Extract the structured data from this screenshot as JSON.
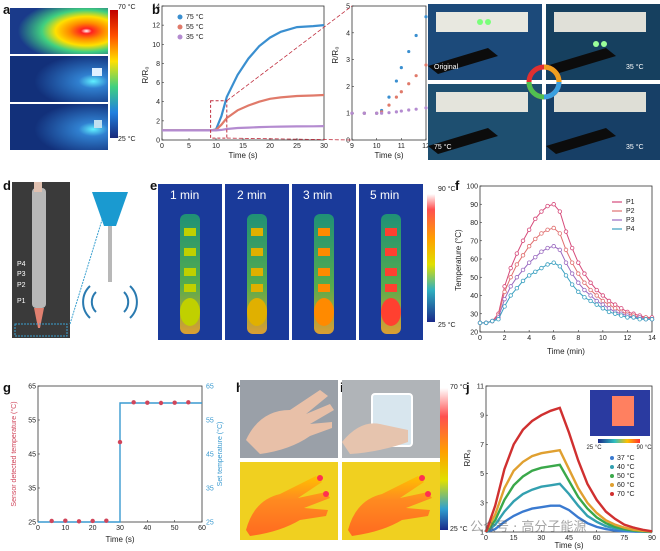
{
  "panels": {
    "a": {
      "letter": "a",
      "scale_max": "70 °C",
      "scale_min": "25 °C"
    },
    "b": {
      "letter": "b",
      "xlabel": "Time (s)",
      "ylabel": "R/R₀",
      "legend": [
        "75 °C",
        "55 °C",
        "35 °C"
      ],
      "ticks_y": [
        "0",
        "2",
        "4",
        "6",
        "8",
        "10",
        "12",
        "14"
      ],
      "ticks_x": [
        "0",
        "5",
        "10",
        "15",
        "20",
        "25",
        "30"
      ],
      "inset_ticks_y": [
        "0",
        "1",
        "2",
        "3",
        "4",
        "5"
      ],
      "inset_ticks_x": [
        "9",
        "10",
        "11",
        "12"
      ]
    },
    "c": {
      "letter": "c",
      "labels": [
        "Original",
        "35 °C",
        "75 °C",
        "35 °C"
      ]
    },
    "d": {
      "letter": "d",
      "probes": [
        "P4",
        "P3",
        "P2",
        "P1"
      ]
    },
    "e": {
      "letter": "e",
      "times": [
        "1 min",
        "2 min",
        "3 min",
        "5 min"
      ],
      "scale_max": "90 °C",
      "scale_min": "25 °C"
    },
    "f": {
      "letter": "f",
      "xlabel": "Time (min)",
      "ylabel": "Temperature (°C)",
      "legend": [
        "P1",
        "P2",
        "P3",
        "P4"
      ],
      "ticks_y": [
        "20",
        "30",
        "40",
        "50",
        "60",
        "70",
        "80",
        "90",
        "100"
      ],
      "ticks_x": [
        "0",
        "2",
        "4",
        "6",
        "8",
        "10",
        "12",
        "14"
      ]
    },
    "g": {
      "letter": "g",
      "xlabel": "Time (s)",
      "ylabel_left": "Sensor detected temperature (°C)",
      "ylabel_right": "Set temperature (°C)",
      "ticks_y": [
        "25",
        "35",
        "45",
        "55",
        "65"
      ],
      "ticks_x": [
        "0",
        "10",
        "20",
        "30",
        "40",
        "50",
        "60"
      ]
    },
    "h": {
      "letter": "h"
    },
    "i": {
      "letter": "i",
      "scale_max": "70 °C",
      "scale_min": "25 °C"
    },
    "j": {
      "letter": "j",
      "xlabel": "Time (s)",
      "ylabel": "R/R₀",
      "legend": [
        "37 °C",
        "40 °C",
        "50 °C",
        "60 °C",
        "70 °C"
      ],
      "ticks_y": [
        "1",
        "3",
        "5",
        "7",
        "9",
        "11"
      ],
      "ticks_x": [
        "0",
        "15",
        "30",
        "45",
        "60",
        "75",
        "90"
      ],
      "inset_min": "25 °C",
      "inset_max": "90 °C"
    }
  },
  "watermark": "公众号 · 高分子能源",
  "chart_data": [
    {
      "type": "line",
      "panel": "b",
      "xlabel": "Time (s)",
      "ylabel": "R/R₀",
      "xlim": [
        0,
        30
      ],
      "ylim": [
        0,
        14
      ],
      "series": [
        {
          "name": "75 °C",
          "color": "#3a8fd0",
          "x": [
            0,
            5,
            9,
            10,
            11,
            12,
            14,
            16,
            18,
            20,
            22,
            25,
            28,
            30
          ],
          "y": [
            1,
            1,
            1,
            1.1,
            2.5,
            4.5,
            6.8,
            8.5,
            9.8,
            10.7,
            11.3,
            11.8,
            11.9,
            12
          ]
        },
        {
          "name": "55 °C",
          "color": "#e07a6a",
          "x": [
            0,
            5,
            9,
            10,
            11,
            12,
            14,
            16,
            18,
            20,
            22,
            25,
            28,
            30
          ],
          "y": [
            1,
            1,
            1,
            1.05,
            1.6,
            2.3,
            3.1,
            3.6,
            4.0,
            4.3,
            4.45,
            4.6,
            4.65,
            4.7
          ]
        },
        {
          "name": "35 °C",
          "color": "#b48bd0",
          "x": [
            0,
            5,
            9,
            10,
            11,
            12,
            14,
            16,
            18,
            20,
            22,
            25,
            28,
            30
          ],
          "y": [
            1,
            1,
            1,
            1,
            1.05,
            1.15,
            1.25,
            1.3,
            1.35,
            1.38,
            1.4,
            1.42,
            1.43,
            1.45
          ]
        }
      ]
    },
    {
      "type": "scatter",
      "panel": "b-inset",
      "xlabel": "Time (s)",
      "ylabel": "R/R₀",
      "xlim": [
        9,
        12
      ],
      "ylim": [
        0,
        5
      ],
      "series": [
        {
          "name": "75 °C",
          "color": "#3a8fd0",
          "x": [
            9,
            9.5,
            10,
            10.2,
            10.5,
            10.8,
            11,
            11.3,
            11.6,
            12
          ],
          "y": [
            1,
            1,
            1,
            1.1,
            1.6,
            2.2,
            2.7,
            3.3,
            3.9,
            4.6
          ]
        },
        {
          "name": "55 °C",
          "color": "#e07a6a",
          "x": [
            9,
            9.5,
            10,
            10.2,
            10.5,
            10.8,
            11,
            11.3,
            11.6,
            12
          ],
          "y": [
            1,
            1,
            1,
            1.05,
            1.3,
            1.6,
            1.8,
            2.1,
            2.4,
            2.8
          ]
        },
        {
          "name": "35 °C",
          "color": "#b48bd0",
          "x": [
            9,
            9.5,
            10,
            10.2,
            10.5,
            10.8,
            11,
            11.3,
            11.6,
            12
          ],
          "y": [
            1,
            1,
            1,
            1,
            1.02,
            1.05,
            1.08,
            1.12,
            1.15,
            1.2
          ]
        }
      ]
    },
    {
      "type": "line",
      "panel": "f",
      "xlabel": "Time (min)",
      "ylabel": "Temperature (°C)",
      "xlim": [
        0,
        14
      ],
      "ylim": [
        20,
        100
      ],
      "series": [
        {
          "name": "P1",
          "color": "#d64a7a",
          "x": [
            0,
            0.5,
            1,
            1.5,
            2,
            2.5,
            3,
            3.5,
            4,
            4.5,
            5,
            5.5,
            6,
            6.5,
            7,
            7.5,
            8,
            8.5,
            9,
            9.5,
            10,
            10.5,
            11,
            11.5,
            12,
            12.5,
            13,
            13.5,
            14
          ],
          "y": [
            25,
            25,
            26,
            30,
            45,
            55,
            63,
            70,
            76,
            82,
            86,
            89,
            90,
            86,
            75,
            66,
            58,
            52,
            47,
            43,
            40,
            37,
            35,
            33,
            31,
            30,
            29,
            28,
            28
          ]
        },
        {
          "name": "P2",
          "color": "#e07070",
          "x": [
            0,
            0.5,
            1,
            1.5,
            2,
            2.5,
            3,
            3.5,
            4,
            4.5,
            5,
            5.5,
            6,
            6.5,
            7,
            7.5,
            8,
            8.5,
            9,
            9.5,
            10,
            10.5,
            11,
            11.5,
            12,
            12.5,
            13,
            13.5,
            14
          ],
          "y": [
            25,
            25,
            26,
            29,
            42,
            50,
            57,
            62,
            67,
            71,
            74,
            76,
            77,
            74,
            65,
            58,
            52,
            47,
            43,
            40,
            37,
            35,
            33,
            31,
            30,
            29,
            28,
            28,
            27
          ]
        },
        {
          "name": "P3",
          "color": "#9a6ac0",
          "x": [
            0,
            0.5,
            1,
            1.5,
            2,
            2.5,
            3,
            3.5,
            4,
            4.5,
            5,
            5.5,
            6,
            6.5,
            7,
            7.5,
            8,
            8.5,
            9,
            9.5,
            10,
            10.5,
            11,
            11.5,
            12,
            12.5,
            13,
            13.5,
            14
          ],
          "y": [
            25,
            25,
            26,
            28,
            38,
            45,
            50,
            54,
            58,
            61,
            64,
            66,
            67,
            65,
            58,
            52,
            47,
            43,
            40,
            37,
            35,
            33,
            31,
            30,
            29,
            28,
            28,
            27,
            27
          ]
        },
        {
          "name": "P4",
          "color": "#3aa0c0",
          "x": [
            0,
            0.5,
            1,
            1.5,
            2,
            2.5,
            3,
            3.5,
            4,
            4.5,
            5,
            5.5,
            6,
            6.5,
            7,
            7.5,
            8,
            8.5,
            9,
            9.5,
            10,
            10.5,
            11,
            11.5,
            12,
            12.5,
            13,
            13.5,
            14
          ],
          "y": [
            25,
            25,
            26,
            27,
            34,
            40,
            44,
            48,
            51,
            53,
            55,
            57,
            58,
            56,
            51,
            46,
            42,
            39,
            37,
            35,
            33,
            31,
            30,
            29,
            28,
            28,
            27,
            27,
            27
          ]
        }
      ]
    },
    {
      "type": "scatter",
      "panel": "g",
      "xlabel": "Time (s)",
      "ylabel": "Sensor detected temperature (°C)",
      "xlim": [
        0,
        60
      ],
      "ylim": [
        25,
        65
      ],
      "series": [
        {
          "name": "Sensor detected temperature",
          "color": "#d0455a",
          "x": [
            5,
            10,
            15,
            20,
            25,
            30,
            35,
            40,
            45,
            50,
            55
          ],
          "y": [
            25.3,
            25.4,
            25.2,
            25.3,
            25.4,
            48.5,
            60.2,
            60.1,
            60.0,
            60.1,
            60.2
          ]
        },
        {
          "name": "Set temperature",
          "color": "#3a9ad0",
          "x": [
            0,
            30,
            30,
            60
          ],
          "y": [
            25,
            25,
            60,
            60
          ]
        }
      ]
    },
    {
      "type": "line",
      "panel": "j",
      "xlabel": "Time (s)",
      "ylabel": "R/R₀",
      "xlim": [
        0,
        90
      ],
      "ylim": [
        1,
        11
      ],
      "series": [
        {
          "name": "37 °C",
          "color": "#3a7ad0",
          "x": [
            0,
            5,
            10,
            15,
            20,
            25,
            30,
            35,
            40,
            45,
            50,
            55,
            60,
            65,
            70,
            75,
            80,
            85,
            90
          ],
          "y": [
            1,
            1.2,
            1.7,
            2.1,
            2.4,
            2.6,
            2.7,
            2.8,
            2.8,
            2.5,
            2.0,
            1.6,
            1.35,
            1.2,
            1.1,
            1.05,
            1.03,
            1.02,
            1.0
          ]
        },
        {
          "name": "40 °C",
          "color": "#33a0b0",
          "x": [
            0,
            5,
            10,
            15,
            20,
            25,
            30,
            35,
            40,
            45,
            50,
            55,
            60,
            65,
            70,
            75,
            80,
            85,
            90
          ],
          "y": [
            1,
            1.5,
            2.4,
            3.1,
            3.6,
            3.9,
            4.1,
            4.2,
            4.3,
            3.6,
            2.8,
            2.1,
            1.7,
            1.4,
            1.25,
            1.15,
            1.08,
            1.04,
            1.02
          ]
        },
        {
          "name": "50 °C",
          "color": "#3aa84a",
          "x": [
            0,
            5,
            10,
            15,
            20,
            25,
            30,
            35,
            40,
            45,
            50,
            55,
            60,
            65,
            70,
            75,
            80,
            85,
            90
          ],
          "y": [
            1,
            1.8,
            3.2,
            4.2,
            4.8,
            5.2,
            5.4,
            5.5,
            5.6,
            4.5,
            3.4,
            2.6,
            2.0,
            1.6,
            1.35,
            1.2,
            1.1,
            1.05,
            1.02
          ]
        },
        {
          "name": "60 °C",
          "color": "#e0a030",
          "x": [
            0,
            5,
            10,
            15,
            20,
            25,
            30,
            35,
            40,
            45,
            50,
            55,
            60,
            65,
            70,
            75,
            80,
            85,
            90
          ],
          "y": [
            1,
            2.2,
            4.0,
            5.2,
            5.8,
            6.2,
            6.4,
            6.5,
            6.6,
            5.3,
            4.0,
            3.0,
            2.3,
            1.8,
            1.5,
            1.3,
            1.15,
            1.08,
            1.03
          ]
        },
        {
          "name": "70 °C",
          "color": "#d03030",
          "x": [
            0,
            5,
            10,
            15,
            20,
            25,
            30,
            35,
            40,
            45,
            50,
            55,
            60,
            65,
            70,
            75,
            80,
            85,
            90
          ],
          "y": [
            1,
            2.8,
            5.3,
            7.0,
            8.0,
            8.6,
            9.0,
            9.3,
            9.5,
            7.8,
            5.9,
            4.3,
            3.2,
            2.4,
            1.9,
            1.5,
            1.3,
            1.15,
            1.05
          ]
        }
      ]
    }
  ]
}
